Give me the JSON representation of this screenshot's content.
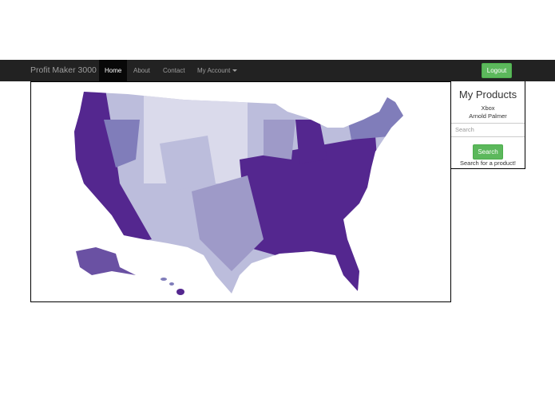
{
  "navbar": {
    "brand": "Profit Maker 3000",
    "items": [
      "Home",
      "About",
      "Contact",
      "My Account"
    ],
    "logout": "Logout"
  },
  "sidebar": {
    "title": "My Products",
    "products": [
      "Xbox",
      "Arnold Palmer"
    ],
    "search_placeholder": "Search",
    "search_button": "Search",
    "help": "Search for a product!"
  }
}
